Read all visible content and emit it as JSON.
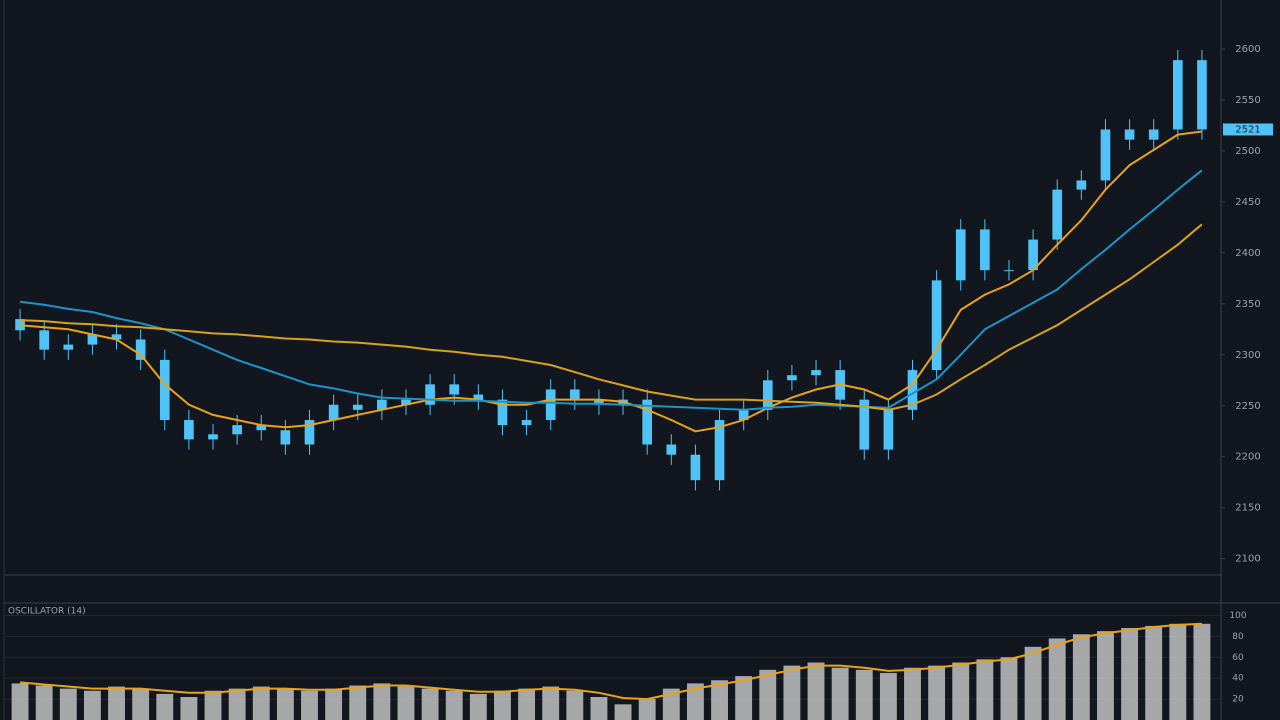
{
  "chart_data": [
    {
      "type": "candlestick",
      "color": "#4fc3f7",
      "open": [
        2335,
        2324,
        2305,
        2310,
        2320,
        2315,
        2295,
        2236,
        2217,
        2222,
        2231,
        2226,
        2212,
        2236,
        2251,
        2246,
        2256,
        2251,
        2271,
        2261,
        2256,
        2231,
        2236,
        2266,
        2256,
        2251,
        2256,
        2212,
        2202,
        2177,
        2236,
        2246,
        2275,
        2280,
        2285,
        2256,
        2207,
        2246,
        2285,
        2373,
        2423,
        2383,
        2383,
        2413,
        2462,
        2471,
        2521,
        2511,
        2521,
        2589
      ],
      "high": [
        2345,
        2334,
        2320,
        2330,
        2330,
        2325,
        2305,
        2246,
        2232,
        2241,
        2241,
        2236,
        2246,
        2261,
        2261,
        2266,
        2266,
        2281,
        2281,
        2271,
        2266,
        2246,
        2276,
        2276,
        2266,
        2266,
        2266,
        2222,
        2212,
        2246,
        2256,
        2285,
        2290,
        2295,
        2295,
        2266,
        2256,
        2295,
        2383,
        2433,
        2433,
        2393,
        2423,
        2472,
        2481,
        2531,
        2531,
        2531,
        2599,
        2599
      ],
      "low": [
        2314,
        2295,
        2295,
        2300,
        2305,
        2285,
        2226,
        2207,
        2207,
        2212,
        2216,
        2202,
        2202,
        2226,
        2236,
        2236,
        2241,
        2241,
        2251,
        2246,
        2221,
        2221,
        2226,
        2246,
        2241,
        2241,
        2202,
        2192,
        2167,
        2167,
        2226,
        2236,
        2265,
        2270,
        2246,
        2197,
        2197,
        2236,
        2275,
        2363,
        2373,
        2373,
        2373,
        2403,
        2452,
        2461,
        2501,
        2501,
        2511,
        2511
      ],
      "close": [
        2324,
        2305,
        2310,
        2320,
        2315,
        2295,
        2236,
        2217,
        2222,
        2231,
        2226,
        2212,
        2236,
        2251,
        2246,
        2256,
        2251,
        2271,
        2261,
        2256,
        2231,
        2236,
        2266,
        2256,
        2251,
        2256,
        2212,
        2202,
        2177,
        2236,
        2246,
        2275,
        2280,
        2285,
        2256,
        2207,
        2246,
        2285,
        2373,
        2423,
        2383,
        2383,
        2413,
        2462,
        2471,
        2521,
        2511,
        2521,
        2589,
        2521
      ],
      "series": [
        {
          "color": "#e8a317",
          "values": [
            2329,
            2327,
            2325,
            2320,
            2315,
            2300,
            2271,
            2251,
            2241,
            2236,
            2231,
            2229,
            2231,
            2236,
            2241,
            2246,
            2251,
            2256,
            2258,
            2256,
            2251,
            2251,
            2256,
            2256,
            2256,
            2254,
            2246,
            2236,
            2225,
            2229,
            2236,
            2248,
            2258,
            2266,
            2271,
            2266,
            2256,
            2271,
            2305,
            2344,
            2359,
            2369,
            2383,
            2408,
            2432,
            2462,
            2486,
            2501,
            2516,
            2519
          ]
        },
        {
          "color": "#1b95c9",
          "values": [
            2352,
            2349,
            2345,
            2342,
            2336,
            2331,
            2325,
            2315,
            2305,
            2295,
            2287,
            2279,
            2271,
            2267,
            2262,
            2258,
            2257,
            2256,
            2255,
            2255,
            2254,
            2253,
            2253,
            2252,
            2252,
            2251,
            2250,
            2249,
            2248,
            2247,
            2246,
            2248,
            2249,
            2251,
            2250,
            2249,
            2248,
            2262,
            2276,
            2300,
            2325,
            2338,
            2351,
            2364,
            2384,
            2403,
            2423,
            2442,
            2462,
            2481
          ]
        },
        {
          "color": "#d9a21c",
          "values": [
            2334,
            2333,
            2331,
            2330,
            2328,
            2327,
            2325,
            2323,
            2321,
            2320,
            2318,
            2316,
            2315,
            2313,
            2312,
            2310,
            2308,
            2305,
            2303,
            2300,
            2298,
            2294,
            2290,
            2283,
            2276,
            2270,
            2264,
            2260,
            2256,
            2256,
            2256,
            2255,
            2254,
            2253,
            2251,
            2249,
            2246,
            2251,
            2261,
            2276,
            2290,
            2305,
            2317,
            2329,
            2344,
            2359,
            2374,
            2391,
            2408,
            2428
          ]
        }
      ],
      "ylim": [
        2084,
        2648
      ],
      "yticks": [
        2100,
        2150,
        2200,
        2250,
        2300,
        2350,
        2400,
        2450,
        2500,
        2550,
        2600
      ]
    },
    {
      "type": "bar",
      "title": "OSCILLATOR (14)",
      "color": "#d8d8d8",
      "values": [
        35,
        33,
        30,
        28,
        32,
        30,
        25,
        22,
        28,
        30,
        32,
        30,
        28,
        30,
        33,
        35,
        32,
        30,
        28,
        25,
        28,
        30,
        32,
        28,
        22,
        15,
        20,
        30,
        35,
        38,
        42,
        48,
        52,
        55,
        50,
        48,
        45,
        50,
        52,
        55,
        58,
        60,
        70,
        78,
        82,
        85,
        88,
        90,
        92,
        92
      ],
      "series": [
        {
          "color": "#e8a317",
          "values": [
            36,
            34,
            32,
            30,
            30,
            30,
            28,
            26,
            26,
            28,
            30,
            30,
            29,
            29,
            31,
            33,
            33,
            31,
            29,
            27,
            27,
            29,
            30,
            29,
            26,
            21,
            20,
            25,
            30,
            34,
            38,
            43,
            48,
            52,
            52,
            50,
            47,
            48,
            50,
            53,
            56,
            58,
            64,
            72,
            79,
            83,
            86,
            89,
            91,
            92
          ]
        }
      ],
      "ylim": [
        0,
        110
      ],
      "yticks": [
        20,
        40,
        60,
        80,
        100
      ],
      "grid": true
    }
  ]
}
